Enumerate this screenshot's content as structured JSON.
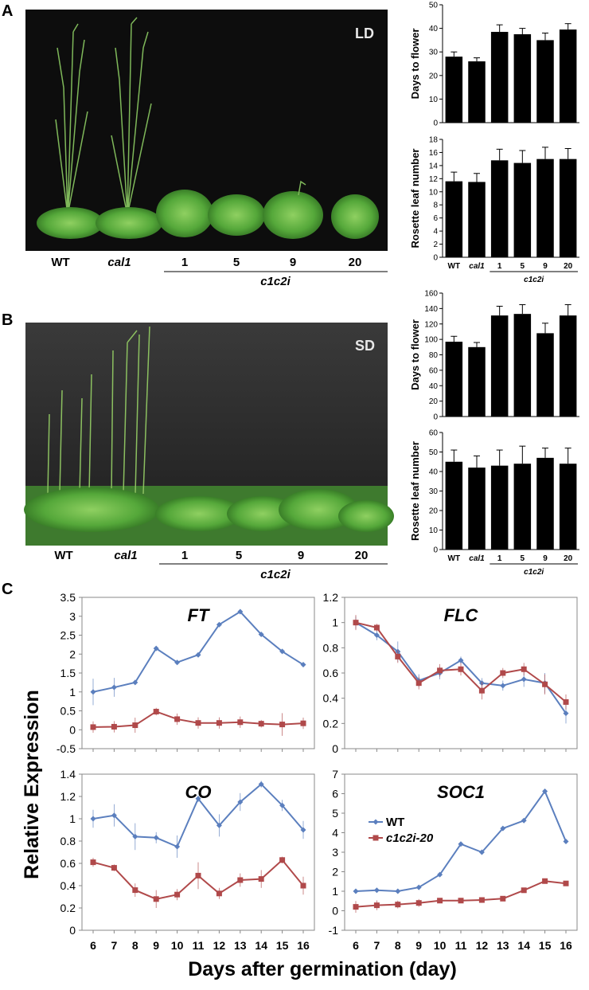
{
  "panels": {
    "a": "A",
    "b": "B",
    "c": "C"
  },
  "photos": {
    "a": {
      "condition": "LD",
      "genotypes": [
        "WT",
        "cal1",
        "1",
        "5",
        "9",
        "20"
      ],
      "group_label": "c1c2i"
    },
    "b": {
      "condition": "SD",
      "genotypes": [
        "WT",
        "cal1",
        "1",
        "5",
        "9",
        "20"
      ],
      "group_label": "c1c2i"
    }
  },
  "chart_data": [
    {
      "type": "bar",
      "panel": "A",
      "ylabel": "Days to flower",
      "categories": [
        "WT",
        "cal1",
        "1",
        "5",
        "9",
        "20"
      ],
      "values": [
        28,
        26,
        38.5,
        37.5,
        35,
        39.5
      ],
      "errors": [
        2,
        1.5,
        3,
        2.5,
        3,
        2.5
      ],
      "ylim": [
        0,
        50
      ],
      "yticks": [
        0,
        10,
        20,
        30,
        40,
        50
      ],
      "group_label": "",
      "show_xticks": false
    },
    {
      "type": "bar",
      "panel": "A",
      "ylabel": "Rosette leaf number",
      "categories": [
        "WT",
        "cal1",
        "1",
        "5",
        "9",
        "20"
      ],
      "values": [
        11.6,
        11.5,
        14.8,
        14.4,
        15,
        15
      ],
      "errors": [
        1.4,
        1.3,
        1.7,
        1.9,
        1.8,
        1.6
      ],
      "ylim": [
        0,
        18
      ],
      "yticks": [
        0,
        2,
        4,
        6,
        8,
        10,
        12,
        14,
        16,
        18
      ],
      "group_label": "c1c2i",
      "show_xticks": true
    },
    {
      "type": "bar",
      "panel": "B",
      "ylabel": "Days to flower",
      "categories": [
        "WT",
        "cal1",
        "1",
        "5",
        "9",
        "20"
      ],
      "values": [
        97,
        90,
        131,
        133,
        108,
        131
      ],
      "errors": [
        7,
        6,
        12,
        12,
        13,
        14
      ],
      "ylim": [
        0,
        160
      ],
      "yticks": [
        0,
        20,
        40,
        60,
        80,
        100,
        120,
        140,
        160
      ],
      "group_label": "",
      "show_xticks": false
    },
    {
      "type": "bar",
      "panel": "B",
      "ylabel": "Rosette leaf number",
      "categories": [
        "WT",
        "cal1",
        "1",
        "5",
        "9",
        "20"
      ],
      "values": [
        45,
        42,
        43,
        44,
        47,
        44
      ],
      "errors": [
        6,
        6,
        8,
        9,
        5,
        8
      ],
      "ylim": [
        0,
        60
      ],
      "yticks": [
        0,
        10,
        20,
        30,
        40,
        50,
        60
      ],
      "group_label": "c1c2i",
      "show_xticks": true
    },
    {
      "type": "line",
      "panel": "C",
      "title": "FT",
      "x": [
        6,
        7,
        8,
        9,
        10,
        11,
        12,
        13,
        14,
        15,
        16
      ],
      "ylim": [
        -0.5,
        3.5
      ],
      "yticks": [
        "-0.5",
        "0",
        "0.5",
        "1",
        "1.5",
        "2",
        "2.5",
        "3",
        "3.5"
      ],
      "series": [
        {
          "values": [
            1.0,
            1.12,
            1.25,
            2.15,
            1.78,
            1.98,
            2.78,
            3.12,
            2.52,
            2.07,
            1.72
          ],
          "errors": [
            0.35,
            0.25,
            0.05,
            0.05,
            0.05,
            0.05,
            0.05,
            0.05,
            0.05,
            0.05,
            0.05
          ],
          "color": "#5b7fbe",
          "marker": "diamond"
        },
        {
          "values": [
            0.07,
            0.08,
            0.12,
            0.48,
            0.28,
            0.18,
            0.18,
            0.2,
            0.16,
            0.14,
            0.17
          ],
          "errors": [
            0.15,
            0.15,
            0.2,
            0.1,
            0.15,
            0.15,
            0.15,
            0.15,
            0.1,
            0.3,
            0.15
          ],
          "color": "#b0494a",
          "marker": "square"
        }
      ]
    },
    {
      "type": "line",
      "panel": "C",
      "title": "FLC",
      "x": [
        6,
        7,
        8,
        9,
        10,
        11,
        12,
        13,
        14,
        15,
        16
      ],
      "ylim": [
        0,
        1.2
      ],
      "yticks": [
        "0",
        "0.2",
        "0.4",
        "0.6",
        "0.8",
        "1",
        "1.2"
      ],
      "series": [
        {
          "values": [
            1.0,
            0.9,
            0.77,
            0.54,
            0.6,
            0.7,
            0.52,
            0.5,
            0.55,
            0.52,
            0.28
          ],
          "errors": [
            0.05,
            0.04,
            0.08,
            0.05,
            0.05,
            0.03,
            0.04,
            0.04,
            0.06,
            0.08,
            0.08
          ],
          "color": "#5b7fbe",
          "marker": "diamond"
        },
        {
          "values": [
            1.0,
            0.96,
            0.73,
            0.52,
            0.62,
            0.63,
            0.46,
            0.6,
            0.63,
            0.51,
            0.37
          ],
          "errors": [
            0.06,
            0.03,
            0.05,
            0.05,
            0.05,
            0.05,
            0.07,
            0.04,
            0.05,
            0.08,
            0.06
          ],
          "color": "#b0494a",
          "marker": "square"
        }
      ]
    },
    {
      "type": "line",
      "panel": "C",
      "title": "CO",
      "x": [
        6,
        7,
        8,
        9,
        10,
        11,
        12,
        13,
        14,
        15,
        16
      ],
      "ylim": [
        0,
        1.4
      ],
      "yticks": [
        "0",
        "0.2",
        "0.4",
        "0.6",
        "0.8",
        "1",
        "1.2",
        "1.4"
      ],
      "series": [
        {
          "values": [
            1.0,
            1.03,
            0.84,
            0.83,
            0.75,
            1.18,
            0.94,
            1.15,
            1.31,
            1.12,
            0.9
          ],
          "errors": [
            0.08,
            0.1,
            0.12,
            0.05,
            0.1,
            0.03,
            0.1,
            0.08,
            0.03,
            0.05,
            0.08
          ],
          "color": "#5b7fbe",
          "marker": "diamond"
        },
        {
          "values": [
            0.61,
            0.56,
            0.36,
            0.28,
            0.32,
            0.49,
            0.33,
            0.45,
            0.46,
            0.63,
            0.4
          ],
          "errors": [
            0.04,
            0.03,
            0.06,
            0.08,
            0.05,
            0.12,
            0.05,
            0.06,
            0.08,
            0.03,
            0.08
          ],
          "color": "#b0494a",
          "marker": "square"
        }
      ]
    },
    {
      "type": "line",
      "panel": "C",
      "title": "SOC1",
      "x": [
        6,
        7,
        8,
        9,
        10,
        11,
        12,
        13,
        14,
        15,
        16
      ],
      "ylim": [
        -1,
        7
      ],
      "yticks": [
        "-1",
        "0",
        "1",
        "2",
        "3",
        "4",
        "5",
        "6",
        "7"
      ],
      "legend": [
        "WT",
        "c1c2i-20"
      ],
      "series": [
        {
          "name": "WT",
          "values": [
            1.0,
            1.05,
            1.0,
            1.2,
            1.85,
            3.42,
            3.0,
            4.22,
            4.62,
            6.12,
            3.55
          ],
          "errors": [
            0.08,
            0.08,
            0.05,
            0.08,
            0.1,
            0.05,
            0.05,
            0.1,
            0.1,
            0.05,
            0.05
          ],
          "color": "#5b7fbe",
          "marker": "diamond"
        },
        {
          "name": "c1c2i-20",
          "values": [
            0.2,
            0.28,
            0.32,
            0.4,
            0.52,
            0.52,
            0.55,
            0.62,
            1.05,
            1.52,
            1.4
          ],
          "errors": [
            0.3,
            0.25,
            0.2,
            0.2,
            0.1,
            0.1,
            0.1,
            0.1,
            0.1,
            0.1,
            0.1
          ],
          "color": "#b0494a",
          "marker": "square"
        }
      ]
    }
  ],
  "labels": {
    "y_shared": "Relative Expression",
    "x_shared": "Days after germination (day)"
  }
}
